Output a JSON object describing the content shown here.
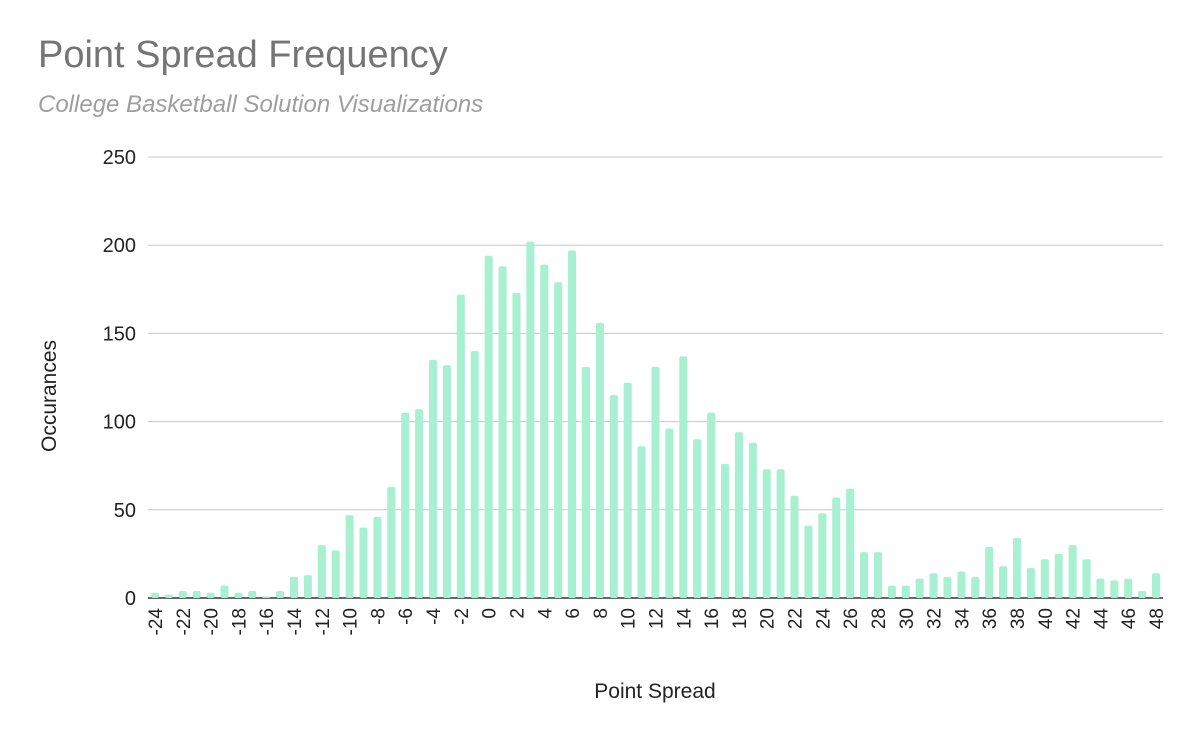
{
  "chart_data": {
    "type": "bar",
    "title": "Point Spread Frequency",
    "subtitle": "College Basketball Solution Visualizations",
    "xlabel": "Point Spread",
    "ylabel": "Occurances",
    "ylim": [
      0,
      250
    ],
    "yticks": [
      0,
      50,
      100,
      150,
      200,
      250
    ],
    "grid": true,
    "legend": "none",
    "bar_color": "#a8f0d2",
    "x": [
      -24,
      -23,
      -22,
      -21,
      -20,
      -19,
      -18,
      -17,
      -16,
      -15,
      -14,
      -13,
      -12,
      -11,
      -10,
      -9,
      -8,
      -7,
      -6,
      -5,
      -4,
      -3,
      -2,
      -1,
      0,
      1,
      2,
      3,
      4,
      5,
      6,
      7,
      8,
      9,
      10,
      11,
      12,
      13,
      14,
      15,
      16,
      17,
      18,
      19,
      20,
      21,
      22,
      23,
      24,
      25,
      26,
      27,
      28,
      29,
      30,
      31,
      32,
      33,
      34,
      35,
      36,
      37,
      38,
      39,
      40,
      41,
      42,
      43,
      44,
      45,
      46,
      47,
      48
    ],
    "x_tick_labels": [
      "-24",
      "-22",
      "-20",
      "-18",
      "-16",
      "-14",
      "-12",
      "-10",
      "-8",
      "-6",
      "-4",
      "-2",
      "0",
      "2",
      "4",
      "6",
      "8",
      "10",
      "12",
      "14",
      "16",
      "18",
      "20",
      "22",
      "24",
      "26",
      "28",
      "30",
      "32",
      "34",
      "36",
      "38",
      "40",
      "42",
      "44",
      "46",
      "48"
    ],
    "values": [
      3,
      2,
      4,
      4,
      3,
      7,
      3,
      4,
      1,
      4,
      12,
      13,
      30,
      27,
      47,
      40,
      46,
      63,
      105,
      107,
      135,
      132,
      172,
      140,
      194,
      188,
      173,
      202,
      189,
      179,
      197,
      131,
      156,
      115,
      122,
      86,
      131,
      96,
      137,
      90,
      105,
      76,
      94,
      88,
      73,
      73,
      58,
      41,
      48,
      57,
      62,
      26,
      26,
      7,
      7,
      11,
      14,
      12,
      15,
      12,
      29,
      18,
      34,
      17,
      22,
      25,
      30,
      22,
      11,
      10,
      11,
      4,
      14
    ]
  }
}
